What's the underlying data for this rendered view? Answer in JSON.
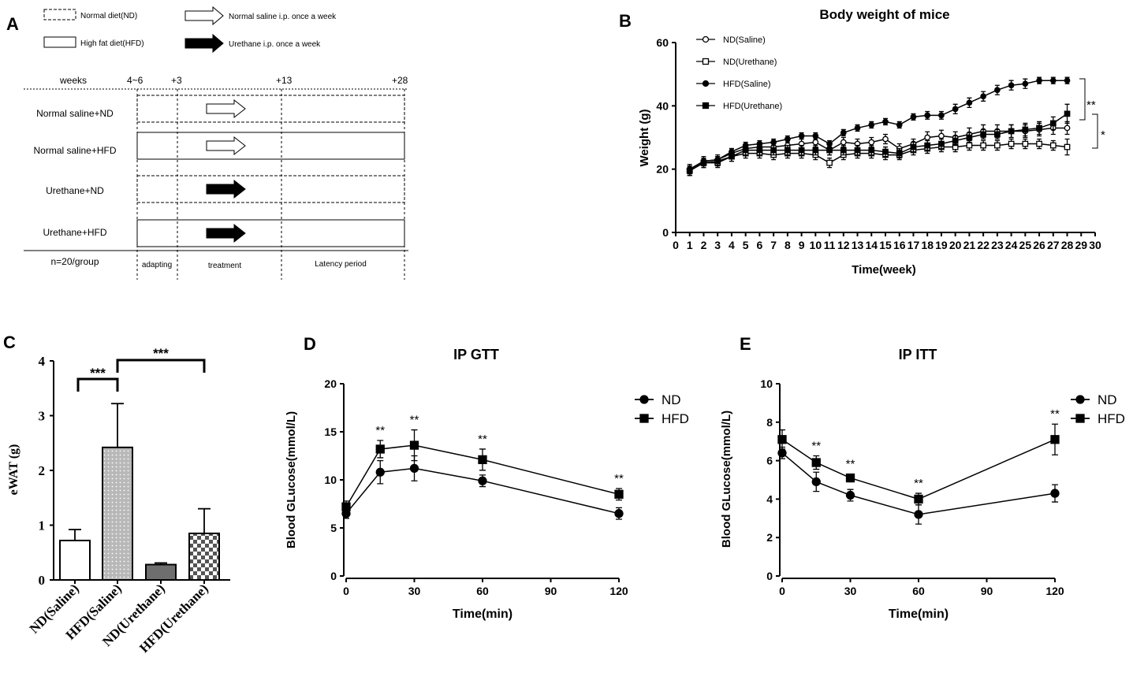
{
  "panel_labels": {
    "a": "A",
    "b": "B",
    "c": "C",
    "d": "D",
    "e": "E"
  },
  "design": {
    "legend": {
      "nd": "Normal diet(ND)",
      "hfd": "High fat diet(HFD)",
      "saline": "Normal saline i.p. once a week",
      "urethane": "Urethane i.p. once a week"
    },
    "timeline": {
      "weeks": "weeks",
      "t0": "4~6",
      "t1": "+3",
      "t2": "+13",
      "t3": "+28"
    },
    "groups": [
      "Normal saline+ND",
      "Normal saline+HFD",
      "Urethane+ND",
      "Urethane+HFD"
    ],
    "footer": {
      "n": "n=20/group",
      "adapting": "adapting",
      "treatment": "treatment",
      "latency": "Latency period"
    }
  },
  "chart_data": [
    {
      "panel": "B",
      "type": "line",
      "title": "Body weight of mice",
      "xlabel": "Time(week)",
      "ylabel": "Weight (g)",
      "xlim": [
        0,
        30
      ],
      "ylim": [
        0,
        60
      ],
      "xticks": [
        "0",
        "1",
        "2",
        "3",
        "4",
        "5",
        "6",
        "7",
        "8",
        "9",
        "10",
        "11",
        "12",
        "13",
        "14",
        "15",
        "16",
        "17",
        "18",
        "19",
        "20",
        "21",
        "22",
        "23",
        "24",
        "25",
        "26",
        "27",
        "28",
        "29",
        "30"
      ],
      "yticks": [
        "0",
        "20",
        "40",
        "60"
      ],
      "x": [
        1,
        2,
        3,
        4,
        5,
        6,
        7,
        8,
        9,
        10,
        11,
        12,
        13,
        14,
        15,
        16,
        17,
        18,
        19,
        20,
        21,
        22,
        23,
        24,
        25,
        26,
        27,
        28
      ],
      "series": [
        {
          "name": "ND(Saline)",
          "marker": "open-circle",
          "values": [
            20,
            22.5,
            23,
            25,
            26.5,
            27,
            27,
            27.5,
            28,
            28.5,
            26,
            28.5,
            28,
            28.5,
            29.5,
            26.5,
            28,
            30,
            30.5,
            30,
            31,
            32,
            32,
            32,
            32,
            32.5,
            33,
            33
          ],
          "err": [
            1.5,
            1.5,
            1.5,
            1.5,
            1.5,
            1.5,
            1.5,
            1.5,
            1.5,
            1.5,
            1.5,
            1.5,
            1.5,
            1.5,
            1.5,
            1.5,
            1.5,
            1.8,
            1.8,
            1.8,
            2,
            2,
            2,
            2,
            2,
            2,
            2,
            2
          ]
        },
        {
          "name": "ND(Urethane)",
          "marker": "open-square",
          "values": [
            19.5,
            22,
            22,
            24,
            25,
            25,
            24.5,
            25,
            25,
            24.5,
            22,
            24.5,
            25,
            25,
            24.5,
            24.5,
            26,
            26.5,
            27,
            27,
            27.5,
            27.5,
            27.5,
            28,
            28,
            28,
            27.5,
            27
          ],
          "err": [
            1.5,
            1.5,
            1.5,
            1.5,
            1.5,
            1.5,
            1.5,
            1.5,
            1.5,
            1.5,
            1.5,
            1.5,
            1.5,
            1.5,
            1.5,
            1.5,
            1.5,
            1.5,
            1.5,
            1.5,
            1.5,
            1.5,
            1.5,
            1.5,
            1.5,
            1.5,
            1.5,
            2.5
          ]
        },
        {
          "name": "HFD(Saline)",
          "marker": "filled-circle",
          "values": [
            20,
            22.5,
            23,
            25.5,
            27.5,
            28,
            28.5,
            29.5,
            30.5,
            30.5,
            28,
            31.5,
            33,
            34,
            35,
            34,
            36.5,
            37,
            37,
            39,
            41,
            43,
            45,
            46.5,
            47,
            48,
            48,
            48
          ],
          "err": [
            1,
            1,
            1,
            1,
            1,
            1,
            1,
            1,
            1,
            1,
            1,
            1,
            1,
            1,
            1,
            1,
            1,
            1.2,
            1.2,
            1.5,
            1.5,
            1.5,
            1.5,
            1.5,
            1.5,
            1,
            1,
            1
          ]
        },
        {
          "name": "HFD(Urethane)",
          "marker": "filled-square",
          "values": [
            19.5,
            22,
            22.5,
            24,
            26,
            26,
            26,
            26,
            26,
            26,
            26,
            26,
            26,
            26,
            25.5,
            25,
            27,
            27.5,
            28,
            29,
            30,
            31,
            31,
            32,
            32.5,
            33,
            34.5,
            37.5
          ],
          "err": [
            1.5,
            1.5,
            1.5,
            1.5,
            1.5,
            1.5,
            1.5,
            1.5,
            1.5,
            1.5,
            1.5,
            1.5,
            1.5,
            1.5,
            1.5,
            1.5,
            1.5,
            1.5,
            1.5,
            1.5,
            1.5,
            1.5,
            1.5,
            2,
            2,
            2,
            2,
            3
          ]
        }
      ],
      "annotations": [
        "**",
        "*"
      ]
    },
    {
      "panel": "C",
      "type": "bar",
      "ylabel": "eWAT (g)",
      "ylim": [
        0,
        4
      ],
      "yticks": [
        "0",
        "1",
        "2",
        "3",
        "4"
      ],
      "categories": [
        "ND(Saline)",
        "HFD(Saline)",
        "ND(Urethane)",
        "HFD(Urethane)"
      ],
      "values": [
        0.72,
        2.42,
        0.28,
        0.85
      ],
      "err": [
        0.2,
        0.8,
        0.03,
        0.45
      ],
      "fills": [
        "white",
        "dots",
        "darkgray",
        "checker"
      ],
      "annotations": [
        "***",
        "***"
      ]
    },
    {
      "panel": "D",
      "type": "line",
      "title": "IP GTT",
      "xlabel": "Time(min)",
      "ylabel": "Blood GLucose(mmol/L)",
      "xlim": [
        0,
        120
      ],
      "ylim": [
        0,
        20
      ],
      "xticks": [
        "0",
        "30",
        "60",
        "90",
        "120"
      ],
      "yticks": [
        "0",
        "5",
        "10",
        "15",
        "20"
      ],
      "x": [
        0,
        15,
        30,
        60,
        120
      ],
      "series": [
        {
          "name": "ND",
          "marker": "filled-circle",
          "values": [
            6.5,
            10.8,
            11.2,
            9.9,
            6.5
          ],
          "err": [
            0.5,
            1.2,
            1.3,
            0.6,
            0.6
          ]
        },
        {
          "name": "HFD",
          "marker": "filled-square",
          "values": [
            7.2,
            13.2,
            13.6,
            12.1,
            8.5
          ],
          "err": [
            0.6,
            0.9,
            1.6,
            1.1,
            0.6
          ]
        }
      ],
      "annotations": [
        "**",
        "**",
        "**",
        "**"
      ]
    },
    {
      "panel": "E",
      "type": "line",
      "title": "IP ITT",
      "xlabel": "Time(min)",
      "ylabel": "Blood GLucose(mmol/L)",
      "xlim": [
        0,
        120
      ],
      "ylim": [
        0,
        10
      ],
      "xticks": [
        "0",
        "30",
        "60",
        "90",
        "120"
      ],
      "yticks": [
        "0",
        "2",
        "4",
        "6",
        "8",
        "10"
      ],
      "x": [
        0,
        15,
        30,
        60,
        120
      ],
      "series": [
        {
          "name": "ND",
          "marker": "filled-circle",
          "values": [
            6.4,
            4.9,
            4.2,
            3.2,
            4.3
          ],
          "err": [
            0.3,
            0.5,
            0.3,
            0.5,
            0.45
          ]
        },
        {
          "name": "HFD",
          "marker": "filled-square",
          "values": [
            7.1,
            5.9,
            5.1,
            4.0,
            7.1
          ],
          "err": [
            0.5,
            0.35,
            0.2,
            0.3,
            0.8
          ]
        }
      ],
      "annotations": [
        "**",
        "**",
        "**",
        "**"
      ]
    }
  ]
}
